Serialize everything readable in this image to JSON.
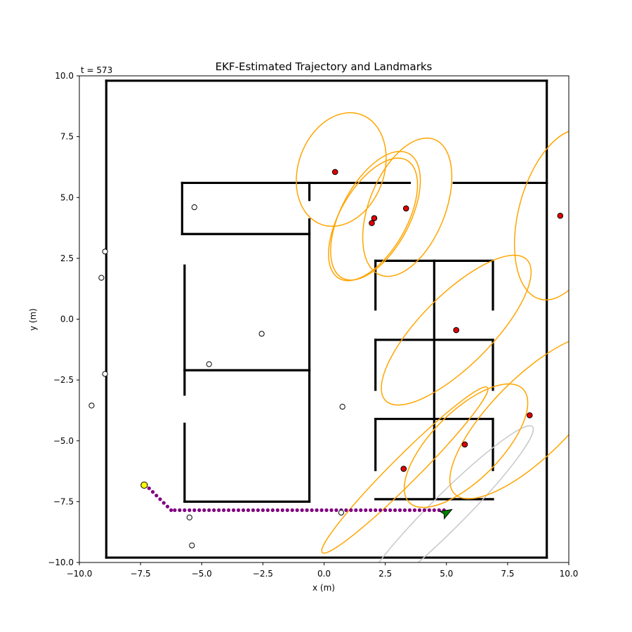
{
  "chart_data": {
    "type": "scatter",
    "title": "EKF-Estimated Trajectory and Landmarks",
    "timestamp_label": "t = 573",
    "xlabel": "x (m)",
    "ylabel": "y (m)",
    "xlim": [
      -10,
      10
    ],
    "ylim": [
      -10,
      10
    ],
    "x_ticks": [
      -10,
      -7.5,
      -5,
      -2.5,
      0,
      2.5,
      5,
      7.5,
      10
    ],
    "x_tick_labels": [
      "−10.0",
      "−7.5",
      "−5.0",
      "−2.5",
      "0.0",
      "2.5",
      "5.0",
      "7.5",
      "10.0"
    ],
    "y_ticks": [
      10,
      7.5,
      5,
      2.5,
      0,
      -2.5,
      -5,
      -7.5,
      -10
    ],
    "y_tick_labels": [
      "10.0",
      "7.5",
      "5.0",
      "2.5",
      "0.0",
      "−2.5",
      "−5.0",
      "−7.5",
      "−10.0"
    ],
    "grid": false,
    "walls": [
      [
        [
          -8.9,
          9.8
        ],
        [
          9.1,
          9.8
        ]
      ],
      [
        [
          -8.9,
          -9.8
        ],
        [
          9.1,
          -9.8
        ]
      ],
      [
        [
          -8.9,
          9.8
        ],
        [
          -8.9,
          -9.8
        ]
      ],
      [
        [
          9.1,
          9.8
        ],
        [
          9.1,
          -9.8
        ]
      ],
      [
        [
          -5.8,
          5.6
        ],
        [
          3.5,
          5.6
        ]
      ],
      [
        [
          5.3,
          5.6
        ],
        [
          9.1,
          5.6
        ]
      ],
      [
        [
          -5.8,
          5.6
        ],
        [
          -5.8,
          3.5
        ]
      ],
      [
        [
          -5.8,
          3.5
        ],
        [
          -0.6,
          3.5
        ]
      ],
      [
        [
          -0.6,
          5.6
        ],
        [
          -0.6,
          4.9
        ]
      ],
      [
        [
          -0.6,
          4.1
        ],
        [
          -0.6,
          -7.5
        ]
      ],
      [
        [
          -5.7,
          2.2
        ],
        [
          -5.7,
          -3.1
        ]
      ],
      [
        [
          -5.7,
          -4.3
        ],
        [
          -5.7,
          -7.5
        ]
      ],
      [
        [
          -5.7,
          -7.5
        ],
        [
          -0.6,
          -7.5
        ]
      ],
      [
        [
          -5.7,
          -2.1
        ],
        [
          -0.6,
          -2.1
        ]
      ],
      [
        [
          2.1,
          2.4
        ],
        [
          6.9,
          2.4
        ]
      ],
      [
        [
          2.1,
          2.4
        ],
        [
          2.1,
          0.4
        ]
      ],
      [
        [
          4.5,
          2.4
        ],
        [
          4.5,
          -7.4
        ]
      ],
      [
        [
          6.9,
          2.4
        ],
        [
          6.9,
          0.4
        ]
      ],
      [
        [
          2.1,
          -0.85
        ],
        [
          6.9,
          -0.85
        ]
      ],
      [
        [
          2.1,
          -0.85
        ],
        [
          2.1,
          -2.9
        ]
      ],
      [
        [
          6.9,
          -0.85
        ],
        [
          6.9,
          -2.9
        ]
      ],
      [
        [
          2.1,
          -4.1
        ],
        [
          6.9,
          -4.1
        ]
      ],
      [
        [
          2.1,
          -4.1
        ],
        [
          2.1,
          -6.2
        ]
      ],
      [
        [
          6.9,
          -4.1
        ],
        [
          6.9,
          -6.2
        ]
      ],
      [
        [
          2.1,
          -7.4
        ],
        [
          6.9,
          -7.4
        ]
      ]
    ],
    "unobserved_landmarks": [
      [
        -5.3,
        4.6
      ],
      [
        -8.95,
        2.78
      ],
      [
        -9.1,
        1.7
      ],
      [
        -2.55,
        -0.6
      ],
      [
        -4.7,
        -1.85
      ],
      [
        -8.95,
        -2.25
      ],
      [
        -9.5,
        -3.55
      ],
      [
        0.75,
        -3.6
      ],
      [
        -5.5,
        -8.15
      ],
      [
        0.7,
        -7.95
      ],
      [
        -5.4,
        -9.3
      ]
    ],
    "observed_landmarks": [
      [
        0.45,
        6.05
      ],
      [
        2.05,
        4.15
      ],
      [
        1.95,
        3.95
      ],
      [
        3.35,
        4.55
      ],
      [
        9.65,
        4.25
      ],
      [
        5.4,
        -0.45
      ],
      [
        8.4,
        -3.95
      ],
      [
        5.75,
        -5.15
      ],
      [
        3.25,
        -6.15
      ]
    ],
    "trajectory": {
      "x": [
        -7.3,
        -7.15,
        -7.0,
        -6.85,
        -6.7,
        -6.55,
        -6.4,
        -6.25,
        -6.1,
        -5.9,
        -5.7,
        -5.5,
        -5.3,
        -5.1,
        -4.9,
        -4.7,
        -4.5,
        -4.3,
        -4.1,
        -3.9,
        -3.7,
        -3.5,
        -3.3,
        -3.1,
        -2.9,
        -2.7,
        -2.5,
        -2.3,
        -2.1,
        -1.9,
        -1.7,
        -1.5,
        -1.3,
        -1.1,
        -0.9,
        -0.7,
        -0.5,
        -0.3,
        -0.1,
        0.1,
        0.3,
        0.5,
        0.7,
        0.9,
        1.1,
        1.3,
        1.5,
        1.7,
        1.9,
        2.1,
        2.3,
        2.5,
        2.7,
        2.9,
        3.1,
        3.3,
        3.5,
        3.7,
        3.9,
        4.1,
        4.3,
        4.5,
        4.7,
        4.9
      ],
      "y": [
        -6.85,
        -6.95,
        -7.1,
        -7.25,
        -7.4,
        -7.55,
        -7.7,
        -7.85,
        -7.85,
        -7.85,
        -7.85,
        -7.85,
        -7.85,
        -7.85,
        -7.85,
        -7.85,
        -7.85,
        -7.85,
        -7.85,
        -7.85,
        -7.85,
        -7.85,
        -7.85,
        -7.85,
        -7.85,
        -7.85,
        -7.85,
        -7.85,
        -7.85,
        -7.85,
        -7.85,
        -7.85,
        -7.85,
        -7.85,
        -7.85,
        -7.85,
        -7.85,
        -7.85,
        -7.85,
        -7.85,
        -7.85,
        -7.85,
        -7.85,
        -7.85,
        -7.85,
        -7.85,
        -7.85,
        -7.85,
        -7.85,
        -7.85,
        -7.85,
        -7.85,
        -7.85,
        -7.85,
        -7.85,
        -7.85,
        -7.85,
        -7.85,
        -7.85,
        -7.85,
        -7.85,
        -7.85,
        -7.85,
        -7.85
      ]
    },
    "start_point": [
      -7.35,
      -6.82
    ],
    "robot_pose": {
      "x": 5.0,
      "y": -7.95,
      "heading_deg": 30
    },
    "landmark_ellipses": [
      {
        "cx": 0.7,
        "cy": 6.15,
        "rx": 1.75,
        "ry": 2.4,
        "angle": 20
      },
      {
        "cx": 2.1,
        "cy": 4.25,
        "rx": 1.4,
        "ry": 2.9,
        "angle": 28
      },
      {
        "cx": 2.0,
        "cy": 4.1,
        "rx": 1.35,
        "ry": 2.8,
        "angle": 30
      },
      {
        "cx": 3.4,
        "cy": 4.6,
        "rx": 1.55,
        "ry": 3.0,
        "angle": 22
      },
      {
        "cx": 9.75,
        "cy": 4.3,
        "rx": 1.8,
        "ry": 3.6,
        "angle": 15
      },
      {
        "cx": 5.4,
        "cy": -0.45,
        "rx": 1.45,
        "ry": 4.1,
        "angle": 45
      },
      {
        "cx": 8.5,
        "cy": -4.0,
        "rx": 1.6,
        "ry": 4.5,
        "angle": 45
      },
      {
        "cx": 5.8,
        "cy": -5.2,
        "rx": 1.4,
        "ry": 3.3,
        "angle": 45
      },
      {
        "cx": 3.3,
        "cy": -6.2,
        "rx": 0.55,
        "ry": 4.8,
        "angle": 45
      }
    ],
    "robot_ellipse": {
      "cx": 5.0,
      "cy": -7.95,
      "rx": 0.7,
      "ry": 5.0,
      "angle": 45
    },
    "colors": {
      "walls": "#000000",
      "observed_landmark": "#e00000",
      "unobserved_landmark": "#ffffff",
      "trajectory": "#800080",
      "start_point": "#ffff00",
      "robot": "#008000",
      "landmark_ellipse": "#ffa500",
      "robot_ellipse": "#c8c8c8"
    }
  }
}
